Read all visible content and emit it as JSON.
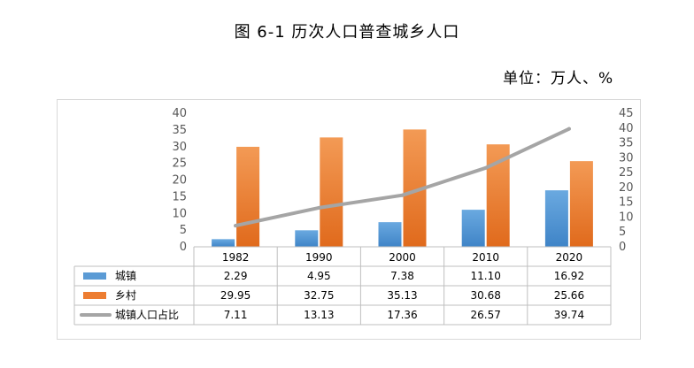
{
  "header": {
    "title": "图 6-1 历次人口普查城乡人口",
    "unit_label": "单位：万人、%"
  },
  "chart_data": {
    "type": "bar",
    "title": "图 6-1 历次人口普查城乡人口",
    "unit": "单位：万人、%",
    "categories": [
      "1982",
      "1990",
      "2000",
      "2010",
      "2020"
    ],
    "series": [
      {
        "name": "城镇",
        "type": "bar",
        "axis": "left",
        "color": "#5b9bd5",
        "values": [
          2.29,
          4.95,
          7.38,
          11.1,
          16.92
        ],
        "labels": [
          "2.29",
          "4.95",
          "7.38",
          "11.10",
          "16.92"
        ]
      },
      {
        "name": "乡村",
        "type": "bar",
        "axis": "left",
        "color": "#ed7d31",
        "values": [
          29.95,
          32.75,
          35.13,
          30.68,
          25.66
        ],
        "labels": [
          "29.95",
          "32.75",
          "35.13",
          "30.68",
          "25.66"
        ]
      },
      {
        "name": "城镇人口占比",
        "type": "line",
        "axis": "right",
        "color": "#a5a5a5",
        "values": [
          7.11,
          13.13,
          17.36,
          26.57,
          39.74
        ],
        "labels": [
          "7.11",
          "13.13",
          "17.36",
          "26.57",
          "39.74"
        ]
      }
    ],
    "y_left": {
      "min": 0,
      "max": 40,
      "step": 5,
      "ticks": [
        "0",
        "5",
        "10",
        "15",
        "20",
        "25",
        "30",
        "35",
        "40"
      ]
    },
    "y_right": {
      "min": 0,
      "max": 45,
      "step": 5,
      "ticks": [
        "0",
        "5",
        "10",
        "15",
        "20",
        "25",
        "30",
        "35",
        "40",
        "45"
      ]
    },
    "grid": false,
    "legend": "data-table-below"
  }
}
